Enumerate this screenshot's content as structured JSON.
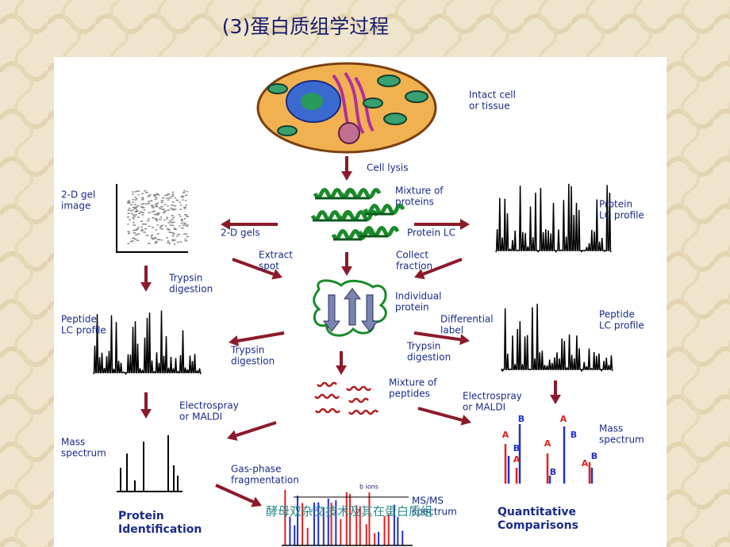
{
  "title": "(3)蛋白质组学过程",
  "labels": {
    "intact_cell": [
      "Intact cell",
      "or tissue"
    ],
    "cell_lysis": [
      "Cell lysis"
    ],
    "mixture_proteins": [
      "Mixture of",
      "proteins"
    ],
    "gel_image": [
      "2-D gel",
      "image"
    ],
    "gels": [
      "2-D gels"
    ],
    "protein_lc": [
      "Protein LC"
    ],
    "protein_lc_profile": [
      "Protein",
      "LC profile"
    ],
    "extract_spot": [
      "Extract",
      "spot"
    ],
    "collect_fraction": [
      "Collect",
      "fraction"
    ],
    "trypsin_left": [
      "Trypsin",
      "digestion"
    ],
    "individual_protein": [
      "Individual",
      "protein"
    ],
    "differential_label": [
      "Differential",
      "label"
    ],
    "peptide_lc_left": [
      "Peptide",
      "LC profile"
    ],
    "peptide_lc_right": [
      "Peptide",
      "LC profile"
    ],
    "trypsin_center_left": [
      "Trypsin",
      "digestion"
    ],
    "trypsin_center_right": [
      "Trypsin",
      "digestion"
    ],
    "mixture_peptides": [
      "Mixture of",
      "peptides"
    ],
    "electrospray_left": [
      "Electrospray",
      "or MALDI"
    ],
    "electrospray_right": [
      "Electrospray",
      "or MALDI"
    ],
    "mass_spectrum_left": [
      "Mass",
      "spectrum"
    ],
    "mass_spectrum_right": [
      "Mass",
      "spectrum"
    ],
    "gas_phase": [
      "Gas-phase",
      "fragmentation"
    ],
    "b_ions": [
      "b ions"
    ],
    "msms": [
      "MS/MS",
      "spectrum"
    ],
    "protein_identification": [
      "Protein",
      "Identification"
    ],
    "quantitative": [
      "Quantitative",
      "Comparisons"
    ]
  },
  "peak_labels": [
    {
      "text": "A",
      "color": "#e02020"
    },
    {
      "text": "B",
      "color": "#2030d0"
    },
    {
      "text": "B",
      "color": "#2030d0"
    },
    {
      "text": "A",
      "color": "#e02020"
    },
    {
      "text": "A",
      "color": "#e02020"
    },
    {
      "text": "A",
      "color": "#e02020"
    },
    {
      "text": "B",
      "color": "#2030d0"
    },
    {
      "text": "B",
      "color": "#2030d0"
    },
    {
      "text": "B",
      "color": "#2030d0"
    },
    {
      "text": "A",
      "color": "#e02020"
    }
  ],
  "footer": "酵母双杂交技术及其在蛋白质组"
}
